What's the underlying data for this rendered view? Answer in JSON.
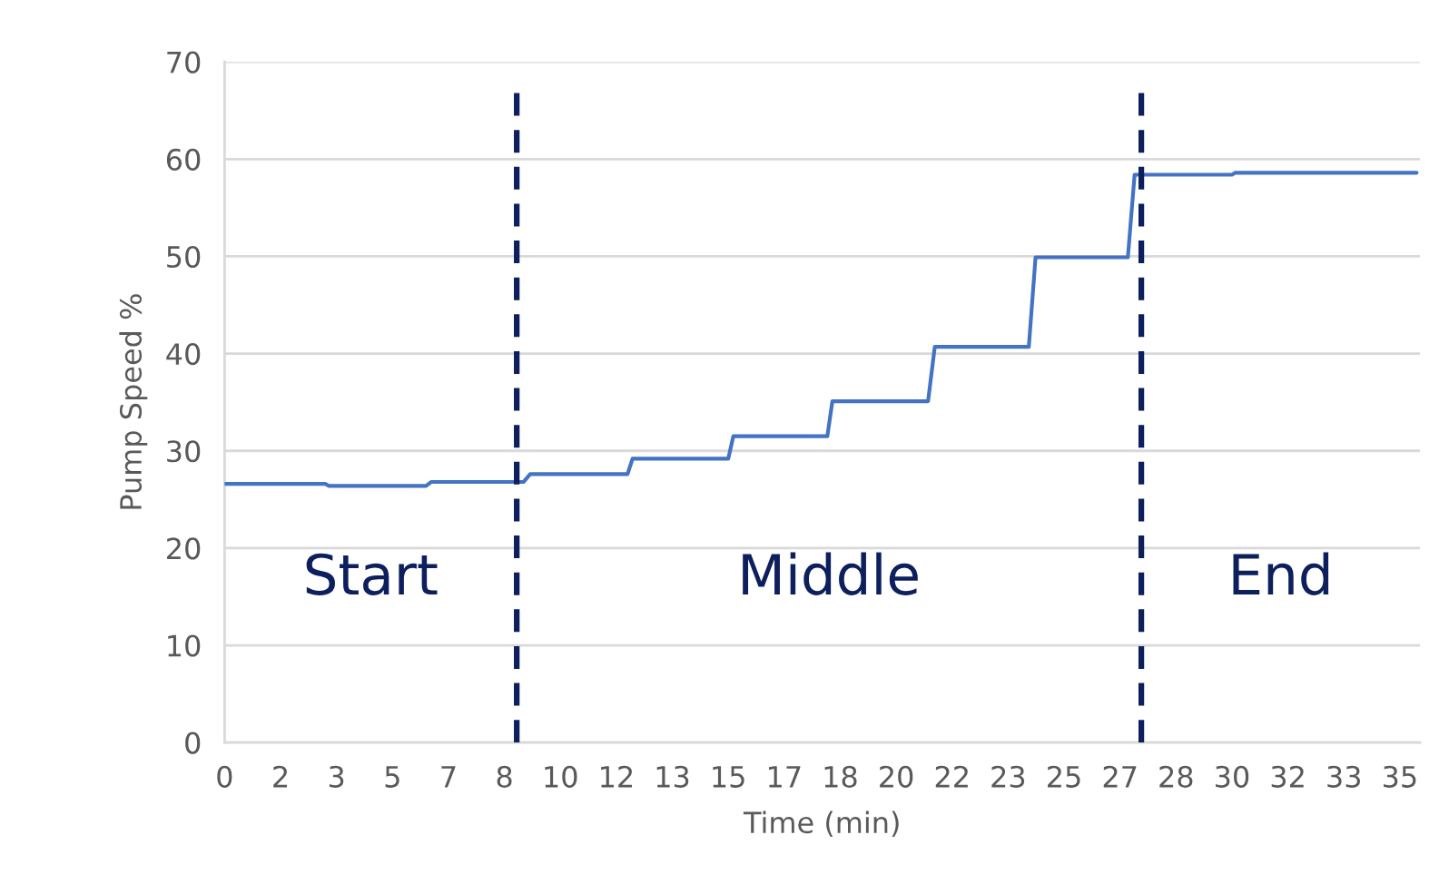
{
  "chart_data": {
    "type": "line",
    "xlabel": "Time (min)",
    "ylabel": "Pump Speed %",
    "x": [
      0,
      3.0,
      3.1,
      6.0,
      6.15,
      8.9,
      9.1,
      12.0,
      12.15,
      15.0,
      15.15,
      17.95,
      18.1,
      20.95,
      21.15,
      23.95,
      24.15,
      26.9,
      27.1,
      30.0,
      30.1,
      35.5
    ],
    "series": [
      {
        "color": "#4472c4",
        "values": [
          26.6,
          26.6,
          26.4,
          26.4,
          26.8,
          26.8,
          27.6,
          27.6,
          29.2,
          29.2,
          31.5,
          31.5,
          35.1,
          35.1,
          40.7,
          40.7,
          49.9,
          49.9,
          58.4,
          58.4,
          58.6,
          58.6
        ]
      }
    ],
    "xlim": [
      0,
      35.6
    ],
    "ylim": [
      0,
      70
    ],
    "yticks": [
      0,
      10,
      20,
      30,
      40,
      50,
      60,
      70
    ],
    "xticks": [
      0,
      {
        "value": 1.667,
        "label": "2"
      },
      {
        "value": 3.333,
        "label": "3"
      },
      5,
      {
        "value": 6.667,
        "label": "7"
      },
      {
        "value": 8.333,
        "label": "8"
      },
      10,
      {
        "value": 11.667,
        "label": "12"
      },
      {
        "value": 13.333,
        "label": "13"
      },
      15,
      {
        "value": 16.667,
        "label": "17"
      },
      {
        "value": 18.333,
        "label": "18"
      },
      20,
      {
        "value": 21.667,
        "label": "22"
      },
      {
        "value": 23.333,
        "label": "23"
      },
      25,
      {
        "value": 26.667,
        "label": "27"
      },
      {
        "value": 28.333,
        "label": "28"
      },
      30,
      {
        "value": 31.667,
        "label": "32"
      },
      {
        "value": 33.333,
        "label": "33"
      },
      35
    ],
    "ref_lines": [
      {
        "axis": "x",
        "value": 8.7,
        "color": "#0d1f5c",
        "line_style": "dashed"
      },
      {
        "axis": "x",
        "value": 27.3,
        "color": "#0d1f5c",
        "line_style": "dashed"
      }
    ],
    "annotations": [
      "Start",
      "Middle",
      "End"
    ],
    "grid": "y",
    "legend": false,
    "marker": "none",
    "line_style": "solid"
  }
}
